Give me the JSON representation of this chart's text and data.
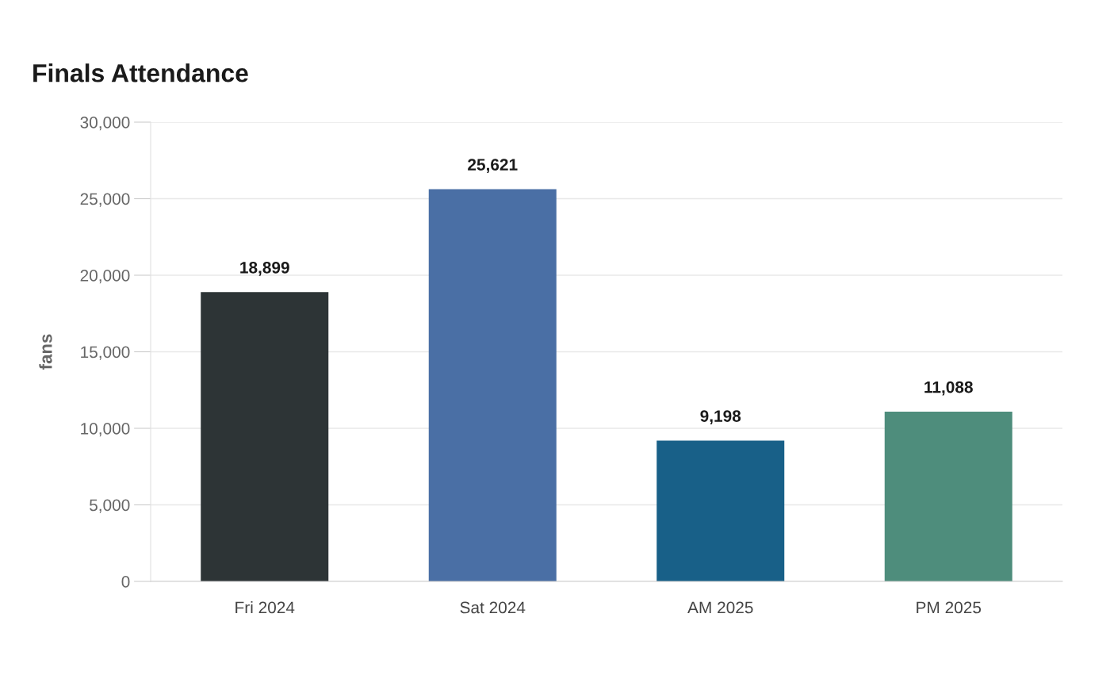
{
  "chart_data": {
    "type": "bar",
    "title": "Finals Attendance",
    "ylabel": "fans",
    "categories": [
      "Fri 2024",
      "Sat 2024",
      "AM 2025",
      "PM 2025"
    ],
    "values": [
      18899,
      25621,
      9198,
      11088
    ],
    "colors": [
      "#2d3436",
      "#4a6fa5",
      "#186088",
      "#4e8d7c"
    ],
    "value_labels": [
      "18,899",
      "25,621",
      "9,198",
      "11,088"
    ],
    "ylim": [
      0,
      30000
    ],
    "yticks": [
      0,
      {
        "value": 5000,
        "label": "5,000"
      },
      {
        "value": 10000,
        "label": "10,000"
      },
      {
        "value": 15000,
        "label": "15,000"
      },
      {
        "value": 20000,
        "label": "20,000"
      },
      {
        "value": 25000,
        "label": "25,000"
      },
      {
        "value": 30000,
        "label": "30,000"
      }
    ],
    "grid": "y",
    "legend": false
  }
}
